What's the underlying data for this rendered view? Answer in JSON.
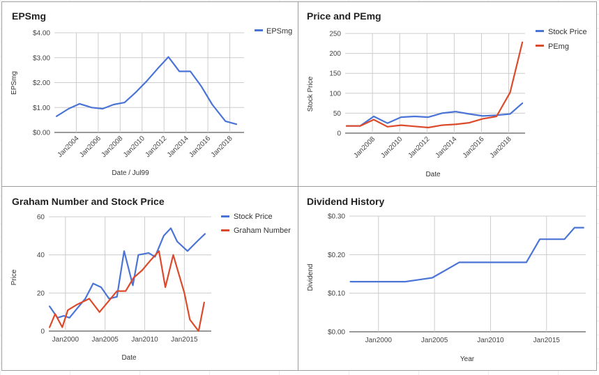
{
  "chart_data": [
    {
      "type": "line",
      "title": "EPSmg",
      "xlabel": "Date / Jul99",
      "ylabel": "EPSmg",
      "ylim": [
        0,
        4
      ],
      "yticks": [
        "$0.00",
        "$1.00",
        "$2.00",
        "$3.00",
        "$4.00"
      ],
      "xlim": [
        2002,
        2019.3
      ],
      "xticks": [
        "Jan2004",
        "Jan2006",
        "Jan2008",
        "Jan2010",
        "Jan2012",
        "Jan2014",
        "Jan2016",
        "Jan2018"
      ],
      "legend": "top-right",
      "series": [
        {
          "name": "EPSmg",
          "color": "#4a74d6",
          "x": [
            2002.2,
            2003.3,
            2004.3,
            2005.4,
            2006.4,
            2007.4,
            2008.4,
            2009.4,
            2010.4,
            2011.4,
            2012.4,
            2013.4,
            2014.4,
            2015.4,
            2016.4,
            2017.6,
            2018.6
          ],
          "y": [
            0.65,
            0.95,
            1.15,
            1.0,
            0.95,
            1.12,
            1.2,
            1.6,
            2.05,
            2.55,
            3.03,
            2.45,
            2.45,
            1.85,
            1.12,
            0.45,
            0.33
          ]
        }
      ]
    },
    {
      "type": "line",
      "title": "Price and PEmg",
      "xlabel": "Date",
      "ylabel": "Stock Price",
      "ylim": [
        0,
        250
      ],
      "yticks": [
        "0",
        "50",
        "100",
        "150",
        "200",
        "250"
      ],
      "xlim": [
        2006,
        2019.2
      ],
      "xticks": [
        "Jan2008",
        "Jan2010",
        "Jan2012",
        "Jan2014",
        "Jan2016",
        "Jan2018"
      ],
      "legend": "top-right",
      "series": [
        {
          "name": "Stock Price",
          "color": "#4a74d6",
          "x": [
            2006.1,
            2007.1,
            2008.1,
            2009.1,
            2010.1,
            2011.1,
            2012.1,
            2013.1,
            2014.1,
            2015.1,
            2016.1,
            2017.1,
            2018.1,
            2019.0
          ],
          "y": [
            18,
            18,
            42,
            25,
            40,
            42,
            40,
            50,
            54,
            48,
            43,
            45,
            48,
            75
          ]
        },
        {
          "name": "PEmg",
          "color": "#dc4a2b",
          "x": [
            2006.1,
            2007.1,
            2008.1,
            2009.1,
            2010.1,
            2011.1,
            2012.1,
            2013.1,
            2014.1,
            2015.1,
            2016.1,
            2017.1,
            2018.1,
            2019.0
          ],
          "y": [
            18,
            18,
            34,
            16,
            20,
            17,
            14,
            20,
            22,
            26,
            36,
            42,
            102,
            228
          ]
        }
      ]
    },
    {
      "type": "line",
      "title": "Graham Number and Stock Price",
      "xlabel": "Date",
      "ylabel": "Price",
      "ylim": [
        0,
        60
      ],
      "yticks": [
        "0",
        "20",
        "40",
        "60"
      ],
      "xlim": [
        1997.9,
        2018.4
      ],
      "xticks": [
        "Jan2000",
        "Jan2005",
        "Jan2010",
        "Jan2015"
      ],
      "legend": "top-right",
      "series": [
        {
          "name": "Stock Price",
          "color": "#4a74d6",
          "x": [
            1998.0,
            1999.0,
            1999.8,
            2000.5,
            2001.5,
            2002.5,
            2003.5,
            2004.5,
            2005.5,
            2006.5,
            2007.4,
            2008.5,
            2009.2,
            2010.5,
            2011.3,
            2012.4,
            2013.3,
            2014.1,
            2015.4,
            2016.6,
            2017.6
          ],
          "y": [
            13,
            7,
            8,
            7,
            12,
            17,
            25,
            23,
            17,
            18,
            42,
            24,
            40,
            41,
            39,
            50,
            54,
            47,
            42,
            47,
            51
          ]
        },
        {
          "name": "Graham Number",
          "color": "#dc4a2b",
          "x": [
            1998.0,
            1998.7,
            1999.6,
            2000.3,
            2001.5,
            2003.0,
            2004.3,
            2005.5,
            2006.5,
            2007.6,
            2008.6,
            2009.7,
            2010.7,
            2011.8,
            2012.6,
            2013.6,
            2015.0,
            2015.7,
            2016.8,
            2017.5
          ],
          "y": [
            2,
            9,
            2,
            11,
            14,
            17,
            10,
            16,
            21,
            21,
            28,
            32,
            37,
            42,
            23,
            40,
            20,
            6,
            0,
            15
          ]
        }
      ]
    },
    {
      "type": "line",
      "title": "Dividend History",
      "xlabel": "Year",
      "ylabel": "Dividend",
      "ylim": [
        0,
        0.3
      ],
      "yticks": [
        "$0.00",
        "$0.10",
        "$0.20",
        "$0.30"
      ],
      "xlim": [
        1997.4,
        2018.5
      ],
      "xticks": [
        "Jan2000",
        "Jan2005",
        "Jan2010",
        "Jan2015"
      ],
      "series": [
        {
          "name": "",
          "color": "#4a74d6",
          "x": [
            1997.5,
            2000.0,
            2001.2,
            2002.4,
            2003.6,
            2004.8,
            2006.0,
            2007.2,
            2008.4,
            2009.6,
            2010.8,
            2012.0,
            2013.2,
            2014.4,
            2015.6,
            2016.6,
            2017.5,
            2018.3
          ],
          "y": [
            0.13,
            0.13,
            0.13,
            0.13,
            0.135,
            0.14,
            0.16,
            0.18,
            0.18,
            0.18,
            0.18,
            0.18,
            0.18,
            0.24,
            0.24,
            0.24,
            0.27,
            0.27
          ]
        }
      ]
    }
  ]
}
